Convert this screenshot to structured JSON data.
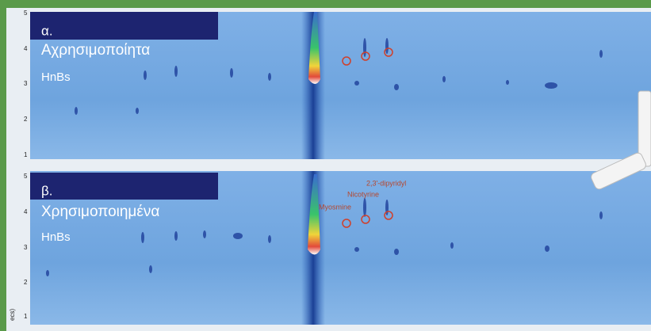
{
  "panels": [
    {
      "label": "α.",
      "title": "Αχρησιμοποίητα",
      "subtitle": "HnBs",
      "y_ticks": [
        "5",
        "4",
        "3",
        "2",
        "1"
      ]
    },
    {
      "label": "β.",
      "title": "Χρησιμοποιημένα",
      "subtitle": "HnBs",
      "y_ticks": [
        "5",
        "4",
        "3",
        "2",
        "1"
      ],
      "annotations": [
        "2,3'-dipyridyl",
        "Nicotyrine",
        "Myosmine"
      ]
    }
  ],
  "axis_label": "ecs)"
}
